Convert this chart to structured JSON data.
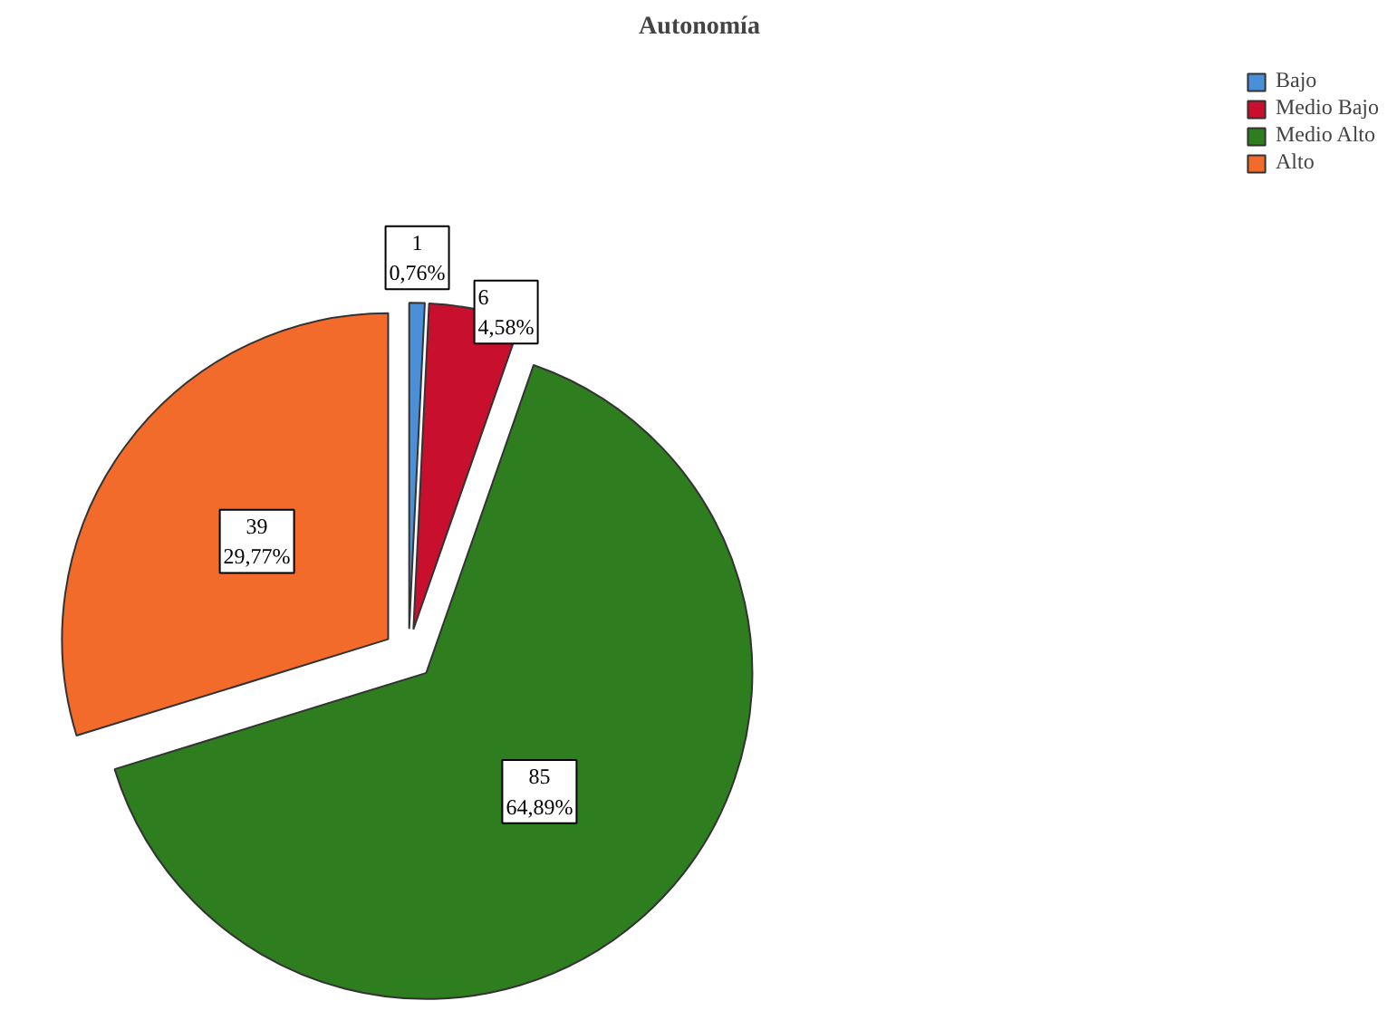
{
  "chart_data": {
    "type": "pie",
    "title": "Autonomía",
    "categories": [
      "Bajo",
      "Medio Bajo",
      "Medio Alto",
      "Alto"
    ],
    "values": [
      1,
      6,
      85,
      39
    ],
    "colors": [
      "#4a90d9",
      "#c8102e",
      "#2e7d1f",
      "#f26b2a"
    ],
    "value_labels": [
      "1\n0,76%",
      "6\n4,58%",
      "85\n64,89%",
      "39\n29,77%"
    ],
    "legend": "top right"
  }
}
